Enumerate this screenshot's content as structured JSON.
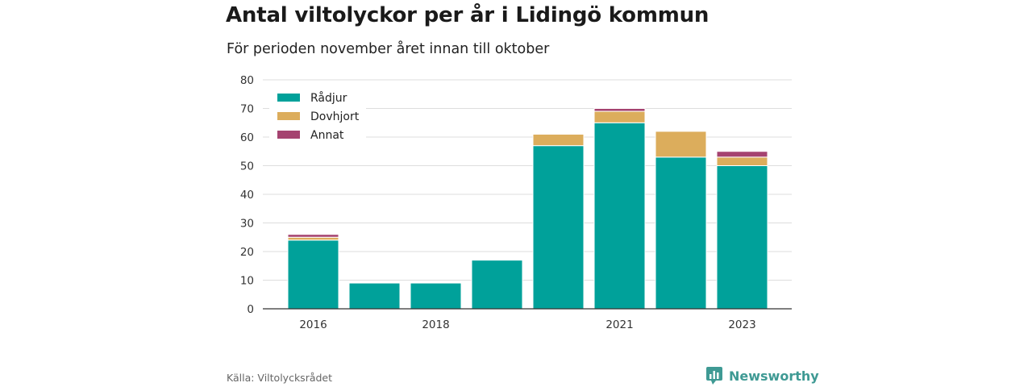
{
  "header": {
    "title": "Antal viltolyckor per år i Lidingö kommun",
    "subtitle": "För perioden november året innan till oktober"
  },
  "footer": {
    "source": "Källa: Viltolycksrådet",
    "brand": "Newsworthy",
    "brand_icon": "bar-chart-logo-icon"
  },
  "colors": {
    "radjur": "#00a19a",
    "dovhjort": "#dcad5c",
    "annat": "#a54370",
    "grid": "#dddddd",
    "brand": "#3f9a94"
  },
  "chart_data": {
    "type": "bar",
    "stacked": true,
    "categories": [
      "2016",
      "2017",
      "2018",
      "2019",
      "2020",
      "2021",
      "2022",
      "2023"
    ],
    "x_tick_labels": [
      "2016",
      "",
      "2018",
      "",
      "",
      "2021",
      "",
      "2023"
    ],
    "series": [
      {
        "name": "Rådjur",
        "values": [
          24,
          9,
          9,
          17,
          57,
          65,
          53,
          50
        ]
      },
      {
        "name": "Dovhjort",
        "values": [
          1,
          0,
          0,
          0,
          4,
          4,
          9,
          3
        ]
      },
      {
        "name": "Annat",
        "values": [
          1,
          0,
          0,
          0,
          0,
          1,
          0,
          2
        ]
      }
    ],
    "ylim": [
      0,
      80
    ],
    "yticks": [
      0,
      10,
      20,
      30,
      40,
      50,
      60,
      70,
      80
    ],
    "grid": true,
    "legend_position": "top-left"
  }
}
